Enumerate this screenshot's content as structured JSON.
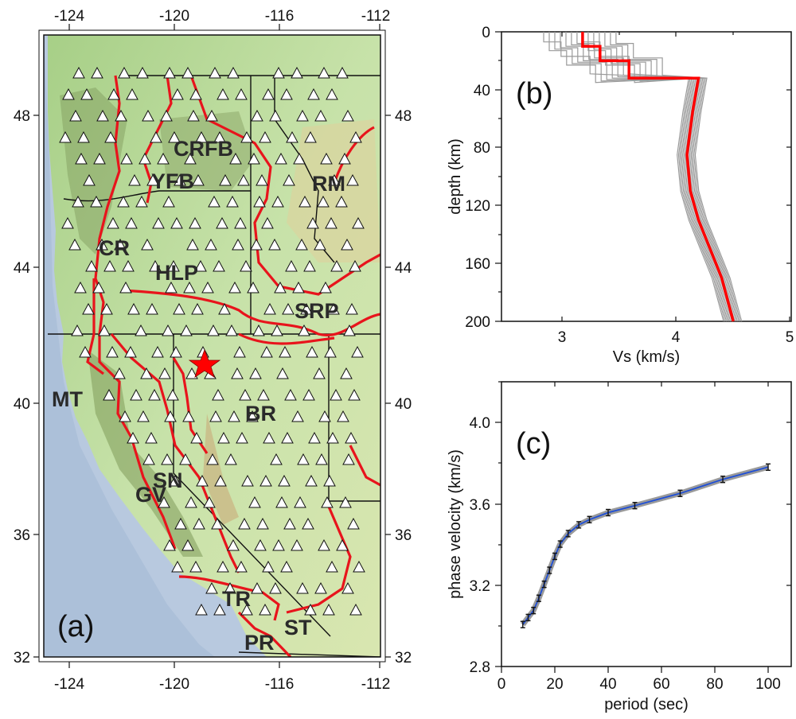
{
  "map_panel": {
    "label": "(a)",
    "lon_ticks": [
      "-124",
      "-120",
      "-116",
      "-112"
    ],
    "lat_ticks": [
      "48",
      "44",
      "40",
      "36",
      "32"
    ],
    "provinces": [
      {
        "id": "crfb",
        "text": "CRFB"
      },
      {
        "id": "yfb",
        "text": "YFB"
      },
      {
        "id": "rm",
        "text": "RM"
      },
      {
        "id": "cr",
        "text": "CR"
      },
      {
        "id": "hlp",
        "text": "HLP"
      },
      {
        "id": "srp",
        "text": "SRP"
      },
      {
        "id": "mt",
        "text": "MT"
      },
      {
        "id": "br",
        "text": "BR"
      },
      {
        "id": "sn",
        "text": "SN"
      },
      {
        "id": "gv",
        "text": "GV"
      },
      {
        "id": "tr",
        "text": "TR"
      },
      {
        "id": "st",
        "text": "ST"
      },
      {
        "id": "pr",
        "text": "PR"
      }
    ],
    "colors": {
      "boundary": "#e8141c",
      "star": "#ff0000",
      "land": "#b9d99a",
      "ocean": "#b8c9df"
    }
  },
  "profile_panel": {
    "label": "(b)",
    "ylabel": "depth (km)",
    "xlabel": "Vs (km/s)",
    "x_ticks": [
      "3",
      "4",
      "5"
    ],
    "y_ticks": [
      "0",
      "40",
      "80",
      "120",
      "160",
      "200"
    ]
  },
  "dispersion_panel": {
    "label": "(c)",
    "ylabel": "phase velocity (km/s)",
    "xlabel": "period (sec)",
    "x_ticks": [
      "0",
      "20",
      "40",
      "60",
      "80",
      "100"
    ],
    "y_ticks": [
      "2.8",
      "3.2",
      "3.6",
      "4.0"
    ]
  },
  "chart_data": [
    {
      "type": "line",
      "panel": "b",
      "xlim": [
        2.5,
        5.0
      ],
      "ylim": [
        200,
        0
      ],
      "series": [
        {
          "x": [
            3.2,
            3.2,
            3.35,
            3.35,
            3.6,
            3.6,
            4.2,
            4.15,
            4.1,
            4.13,
            4.2,
            4.3,
            4.4,
            4.45,
            4.5
          ],
          "y": [
            0,
            10,
            10,
            20,
            20,
            32,
            32,
            55,
            85,
            110,
            130,
            150,
            170,
            185,
            200
          ]
        }
      ]
    },
    {
      "type": "line",
      "panel": "c",
      "xlim": [
        0,
        100
      ],
      "ylim": [
        2.8,
        4.2
      ],
      "series": [
        {
          "x": [
            8,
            10,
            12,
            14,
            16,
            18,
            20,
            22,
            25,
            29,
            33,
            40,
            50,
            67,
            83,
            100
          ],
          "y": [
            3.04,
            3.08,
            3.12,
            3.19,
            3.27,
            3.35,
            3.43,
            3.5,
            3.56,
            3.61,
            3.64,
            3.68,
            3.72,
            3.79,
            3.87,
            3.94
          ]
        }
      ]
    }
  ]
}
